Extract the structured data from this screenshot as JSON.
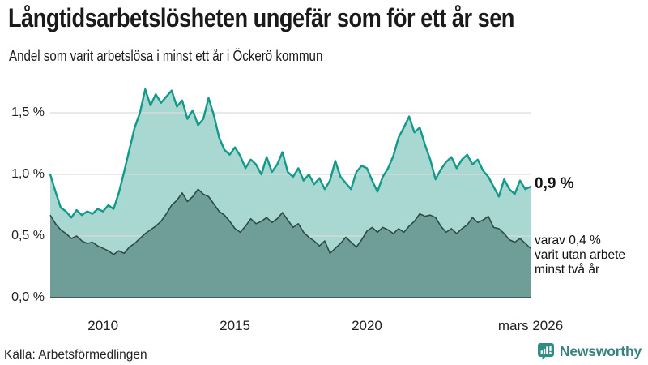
{
  "chart_data": {
    "type": "area",
    "title": "Långtidsarbetslösheten ungefär som för ett år sen",
    "subtitle": "Andel som varit arbetslösa i minst ett år i Öckerö kommun",
    "xlabel": "",
    "ylabel": "",
    "xlim": [
      2008.0,
      2026.2
    ],
    "ylim": [
      0,
      1.75
    ],
    "grid": true,
    "legend_position": "none",
    "x": [
      2008.0,
      2008.2,
      2008.4,
      2008.6,
      2008.8,
      2009.0,
      2009.2,
      2009.4,
      2009.6,
      2009.8,
      2010.0,
      2010.2,
      2010.4,
      2010.6,
      2010.8,
      2011.0,
      2011.2,
      2011.4,
      2011.6,
      2011.8,
      2012.0,
      2012.2,
      2012.4,
      2012.6,
      2012.8,
      2013.0,
      2013.2,
      2013.4,
      2013.6,
      2013.8,
      2014.0,
      2014.2,
      2014.4,
      2014.6,
      2014.8,
      2015.0,
      2015.2,
      2015.4,
      2015.6,
      2015.8,
      2016.0,
      2016.2,
      2016.4,
      2016.6,
      2016.8,
      2017.0,
      2017.2,
      2017.4,
      2017.6,
      2017.8,
      2018.0,
      2018.2,
      2018.4,
      2018.6,
      2018.8,
      2019.0,
      2019.2,
      2019.4,
      2019.6,
      2019.8,
      2020.0,
      2020.2,
      2020.4,
      2020.6,
      2020.8,
      2021.0,
      2021.2,
      2021.4,
      2021.6,
      2021.8,
      2022.0,
      2022.2,
      2022.4,
      2022.6,
      2022.8,
      2023.0,
      2023.2,
      2023.4,
      2023.6,
      2023.8,
      2024.0,
      2024.2,
      2024.4,
      2024.6,
      2024.8,
      2025.0,
      2025.2,
      2025.4,
      2025.6,
      2025.8,
      2026.0,
      2026.2
    ],
    "series": [
      {
        "name": "Andel arbetslösa minst ett år",
        "line_color": "#12998a",
        "fill_color": "#a8d8d1",
        "values": [
          1.0,
          0.86,
          0.73,
          0.7,
          0.65,
          0.71,
          0.67,
          0.7,
          0.68,
          0.72,
          0.7,
          0.75,
          0.72,
          0.85,
          1.02,
          1.2,
          1.38,
          1.5,
          1.69,
          1.56,
          1.65,
          1.58,
          1.63,
          1.68,
          1.55,
          1.6,
          1.45,
          1.52,
          1.4,
          1.45,
          1.62,
          1.48,
          1.3,
          1.2,
          1.16,
          1.22,
          1.15,
          1.05,
          1.12,
          1.08,
          1.0,
          1.14,
          1.02,
          1.08,
          1.18,
          1.02,
          0.98,
          1.05,
          0.95,
          1.0,
          0.92,
          0.97,
          0.88,
          0.95,
          1.11,
          0.98,
          0.93,
          0.88,
          1.02,
          1.07,
          1.05,
          0.95,
          0.86,
          0.98,
          1.05,
          1.15,
          1.3,
          1.38,
          1.47,
          1.34,
          1.38,
          1.24,
          1.12,
          0.96,
          1.04,
          1.1,
          1.14,
          1.05,
          1.12,
          1.16,
          1.08,
          1.12,
          1.03,
          0.98,
          0.9,
          0.82,
          0.96,
          0.88,
          0.84,
          0.95,
          0.88,
          0.9
        ]
      },
      {
        "name": "varav utan arbete minst två år",
        "line_color": "#2e4b47",
        "fill_color": "#6f9e99",
        "values": [
          0.67,
          0.6,
          0.55,
          0.52,
          0.48,
          0.5,
          0.46,
          0.44,
          0.45,
          0.42,
          0.4,
          0.38,
          0.35,
          0.38,
          0.36,
          0.41,
          0.44,
          0.48,
          0.52,
          0.55,
          0.58,
          0.62,
          0.68,
          0.75,
          0.79,
          0.85,
          0.78,
          0.82,
          0.88,
          0.84,
          0.82,
          0.76,
          0.7,
          0.67,
          0.62,
          0.56,
          0.53,
          0.58,
          0.64,
          0.6,
          0.62,
          0.65,
          0.61,
          0.64,
          0.69,
          0.63,
          0.57,
          0.6,
          0.53,
          0.49,
          0.46,
          0.42,
          0.46,
          0.36,
          0.4,
          0.44,
          0.49,
          0.45,
          0.41,
          0.47,
          0.54,
          0.57,
          0.53,
          0.57,
          0.55,
          0.52,
          0.56,
          0.53,
          0.58,
          0.62,
          0.68,
          0.66,
          0.67,
          0.65,
          0.58,
          0.53,
          0.56,
          0.52,
          0.56,
          0.59,
          0.65,
          0.61,
          0.63,
          0.66,
          0.57,
          0.56,
          0.52,
          0.47,
          0.45,
          0.48,
          0.44,
          0.4
        ]
      }
    ],
    "yticks": [
      {
        "value": 0.0,
        "label": "0,0 %"
      },
      {
        "value": 0.5,
        "label": "0,5 %"
      },
      {
        "value": 1.0,
        "label": "1,0 %"
      },
      {
        "value": 1.5,
        "label": "1,5 %"
      }
    ],
    "xticks": [
      {
        "value": 2010,
        "label": "2010"
      },
      {
        "value": 2015,
        "label": "2015"
      },
      {
        "value": 2020,
        "label": "2020"
      },
      {
        "value": 2026.2,
        "label": "mars 2026"
      }
    ],
    "annotations": {
      "latest_value": "0,9 %",
      "note_lines": [
        "varav 0,4 %",
        "varit utan arbete",
        "minst två år"
      ]
    }
  },
  "footer": {
    "source": "Källa: Arbetsförmedlingen",
    "brand": "Newsworthy"
  },
  "colors": {
    "gridline": "#dcdcdc",
    "baseline": "#2e4b47",
    "brand_icon": "#2f8d84",
    "brand_text": "#37827c"
  }
}
